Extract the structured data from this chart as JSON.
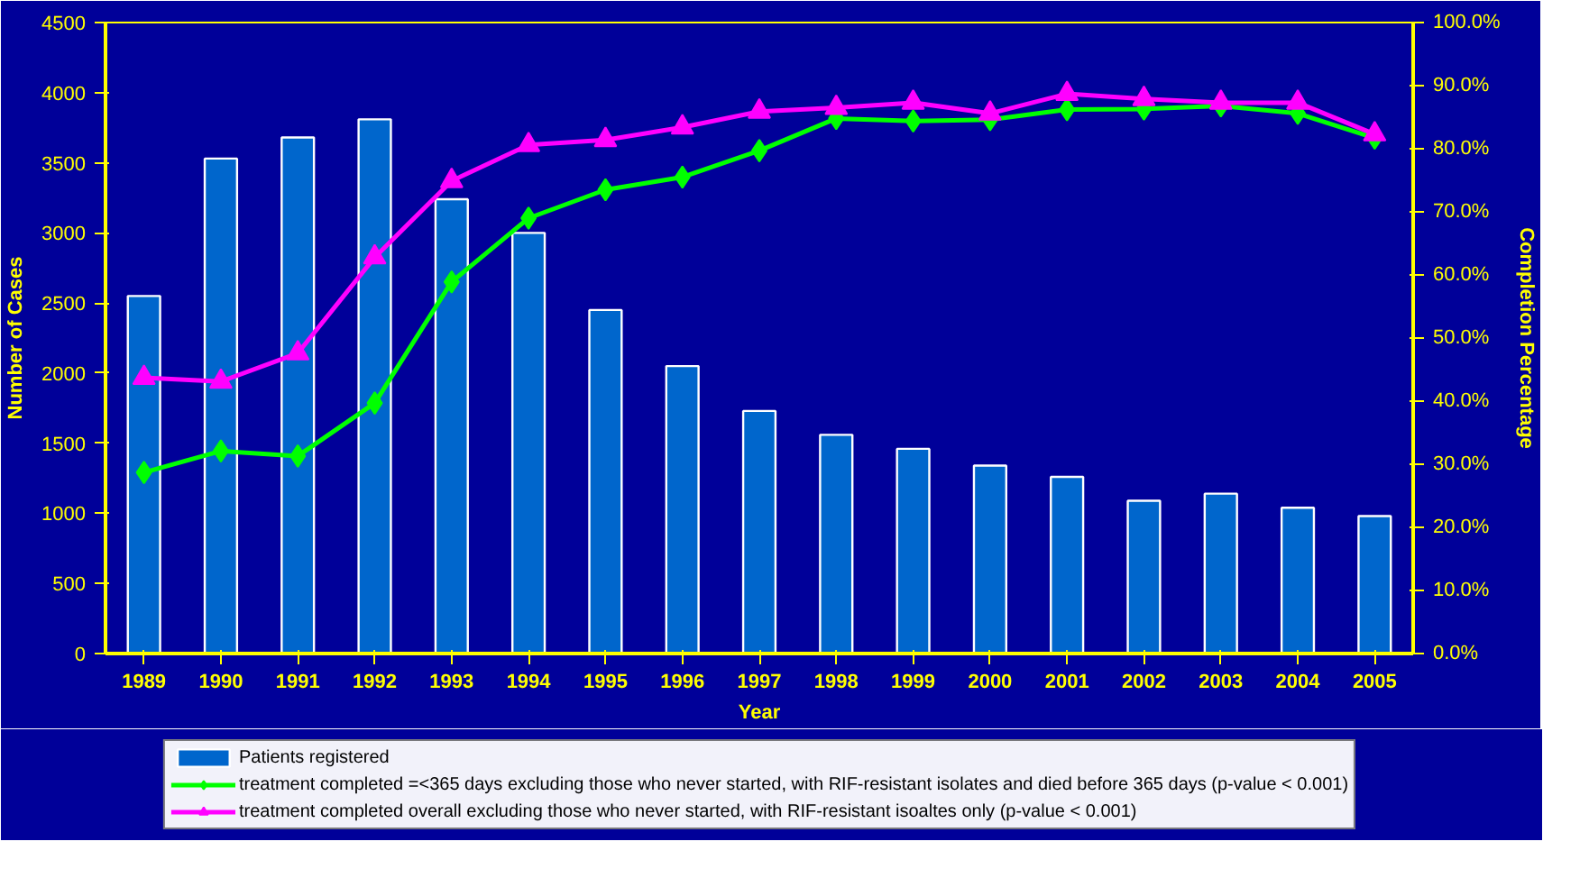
{
  "chart_data": {
    "type": "bar",
    "xlabel": "Year",
    "ylabel": "Number of Cases",
    "y2label": "Completion Percentage",
    "categories": [
      "1989",
      "1990",
      "1991",
      "1992",
      "1993",
      "1994",
      "1995",
      "1996",
      "1997",
      "1998",
      "1999",
      "2000",
      "2001",
      "2002",
      "2003",
      "2004",
      "2005"
    ],
    "series": [
      {
        "name": "Patients registered",
        "color": "#0066cc",
        "values": [
          2550,
          3530,
          3680,
          3810,
          3240,
          3000,
          2450,
          2050,
          1730,
          1560,
          1460,
          1340,
          1260,
          1090,
          1140,
          1040,
          980
        ]
      },
      {
        "name": "treatment completed =<365 days excluding those who never started, with RIF-resistant isolates and died before 365 days (p-value < 0.001)",
        "type": "line",
        "axis": "y2",
        "marker": "diamond",
        "color": "#00ff00",
        "values": [
          28.7,
          32.1,
          31.3,
          39.7,
          58.9,
          69.0,
          73.5,
          75.5,
          79.7,
          84.8,
          84.4,
          84.6,
          86.2,
          86.3,
          86.8,
          85.6,
          81.7
        ]
      },
      {
        "name": "treatment completed overall excluding those who never started, with RIF-resistant isoaltes only (p-value < 0.001)",
        "type": "line",
        "axis": "y2",
        "marker": "triangle",
        "color": "#ff00ff",
        "values": [
          43.7,
          43.1,
          47.6,
          62.8,
          74.9,
          80.6,
          81.4,
          83.4,
          85.9,
          86.5,
          87.3,
          85.6,
          88.7,
          87.9,
          87.3,
          87.3,
          82.3
        ]
      }
    ],
    "ylim": [
      0,
      4500
    ],
    "yticks": [
      0,
      500,
      1000,
      1500,
      2000,
      2500,
      3000,
      3500,
      4000,
      4500
    ],
    "y2lim": [
      0,
      100
    ],
    "y2ticks": [
      {
        "value": 0,
        "label": "0.0%"
      },
      {
        "value": 10,
        "label": "10.0%"
      },
      {
        "value": 20,
        "label": "20.0%"
      },
      {
        "value": 30,
        "label": "30.0%"
      },
      {
        "value": 40,
        "label": "40.0%"
      },
      {
        "value": 50,
        "label": "50.0%"
      },
      {
        "value": 60,
        "label": "60.0%"
      },
      {
        "value": 70,
        "label": "70.0%"
      },
      {
        "value": 80,
        "label": "80.0%"
      },
      {
        "value": 90,
        "label": "90.0%"
      },
      {
        "value": 100,
        "label": "100.0%"
      }
    ],
    "grid": false,
    "legend": "bottom"
  }
}
